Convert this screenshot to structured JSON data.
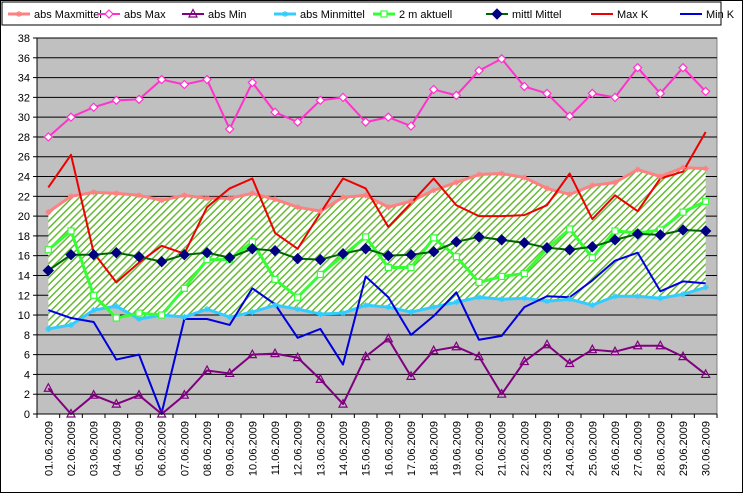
{
  "chart_data": {
    "type": "line",
    "title": "",
    "xlabel": "",
    "ylabel": "",
    "ylim": [
      0,
      38
    ],
    "ytick_step": 2,
    "grid": "horizontal",
    "legend_position": "top",
    "x": [
      "01.06.2009",
      "02.06.2009",
      "03.06.2009",
      "04.06.2009",
      "05.06.2009",
      "06.06.2009",
      "07.06.2009",
      "08.06.2009",
      "09.06.2009",
      "10.06.2009",
      "11.06.2009",
      "12.06.2009",
      "13.06.2009",
      "14.06.2009",
      "15.06.2009",
      "16.06.2009",
      "17.06.2009",
      "18.06.2009",
      "19.06.2009",
      "20.06.2009",
      "21.06.2009",
      "22.06.2009",
      "23.06.2009",
      "24.06.2009",
      "25.06.2009",
      "26.06.2009",
      "27.06.2009",
      "28.06.2009",
      "29.06.2009",
      "30.06.2009"
    ],
    "band": {
      "upper_series": "abs Maxmittel",
      "lower_series": "abs Minmittel",
      "fill_color": "#66bb33"
    },
    "series": [
      {
        "name": "abs Maxmittel",
        "color": "#ff8080",
        "marker": "star",
        "width": 3,
        "values": [
          20.4,
          22.0,
          22.4,
          22.3,
          22.1,
          21.6,
          22.1,
          21.8,
          21.8,
          22.3,
          21.7,
          20.9,
          20.5,
          21.9,
          22.1,
          20.9,
          21.5,
          22.6,
          23.4,
          24.2,
          24.3,
          23.9,
          22.8,
          22.2,
          23.1,
          23.4,
          24.7,
          24.0,
          24.9,
          24.8
        ]
      },
      {
        "name": "abs Max",
        "color": "#ff33cc",
        "marker": "diamond-open",
        "width": 2,
        "values": [
          28.0,
          30.0,
          31.0,
          31.7,
          31.8,
          33.8,
          33.3,
          33.8,
          28.8,
          33.5,
          30.5,
          29.5,
          31.7,
          32.0,
          29.5,
          30.0,
          29.1,
          32.8,
          32.2,
          34.7,
          35.9,
          33.1,
          32.4,
          30.1,
          32.4,
          32.0,
          35.0,
          32.4,
          35.0,
          32.6
        ]
      },
      {
        "name": "abs Min",
        "color": "#800080",
        "marker": "triangle-open",
        "width": 2,
        "values": [
          2.6,
          0.0,
          1.9,
          1.0,
          1.9,
          0.0,
          1.9,
          4.4,
          4.1,
          6.0,
          6.1,
          5.7,
          3.5,
          1.0,
          5.8,
          7.6,
          3.8,
          6.4,
          6.8,
          5.8,
          2.0,
          5.3,
          7.0,
          5.1,
          6.5,
          6.3,
          6.9,
          6.9,
          5.8,
          4.0
        ]
      },
      {
        "name": "abs Minmittel",
        "color": "#33ccff",
        "marker": "asterisk",
        "width": 3,
        "values": [
          8.6,
          9.0,
          10.5,
          10.9,
          9.6,
          10.0,
          9.8,
          10.6,
          9.8,
          10.3,
          11.0,
          10.6,
          10.1,
          10.2,
          11.0,
          10.8,
          10.3,
          10.8,
          11.3,
          11.8,
          11.6,
          11.7,
          11.4,
          11.6,
          11.0,
          11.9,
          11.9,
          11.7,
          12.1,
          12.8
        ]
      },
      {
        "name": "2 m aktuell",
        "color": "#33ff33",
        "marker": "square-open",
        "width": 3,
        "values": [
          16.6,
          18.5,
          12.0,
          9.7,
          10.2,
          10.0,
          12.7,
          15.6,
          15.6,
          17.4,
          13.6,
          11.8,
          14.1,
          16.0,
          17.9,
          14.8,
          14.8,
          17.8,
          15.9,
          13.3,
          13.9,
          14.2,
          16.7,
          18.7,
          15.8,
          18.5,
          18.3,
          18.6,
          20.4,
          21.5
        ]
      },
      {
        "name": "mittl Mittel",
        "color": "#006600",
        "marker": "diamond-navy",
        "width": 2,
        "values": [
          14.5,
          16.1,
          16.1,
          16.3,
          15.9,
          15.4,
          16.1,
          16.3,
          15.8,
          16.7,
          16.5,
          15.7,
          15.6,
          16.2,
          16.7,
          16.0,
          16.1,
          16.4,
          17.4,
          17.9,
          17.6,
          17.3,
          16.8,
          16.6,
          16.9,
          17.6,
          18.2,
          18.1,
          18.6,
          18.5
        ]
      },
      {
        "name": "Max K",
        "color": "#ee0000",
        "marker": "none",
        "width": 2,
        "values": [
          22.9,
          26.2,
          16.3,
          13.3,
          15.3,
          17.0,
          16.2,
          20.9,
          22.8,
          23.8,
          18.3,
          16.7,
          20.3,
          23.8,
          22.8,
          18.9,
          21.3,
          23.8,
          21.1,
          20.0,
          20.0,
          20.1,
          21.1,
          24.3,
          19.7,
          22.1,
          20.5,
          23.8,
          24.5,
          28.5
        ]
      },
      {
        "name": "Min K",
        "color": "#0000dd",
        "marker": "none",
        "width": 2,
        "values": [
          10.5,
          9.7,
          9.3,
          5.5,
          6.0,
          0.1,
          9.6,
          9.6,
          9.0,
          12.7,
          11.1,
          7.7,
          8.6,
          5.0,
          13.9,
          11.8,
          8.0,
          9.9,
          12.3,
          7.5,
          7.9,
          10.8,
          11.9,
          11.8,
          13.5,
          15.5,
          16.3,
          12.4,
          13.4,
          13.2
        ]
      }
    ]
  }
}
